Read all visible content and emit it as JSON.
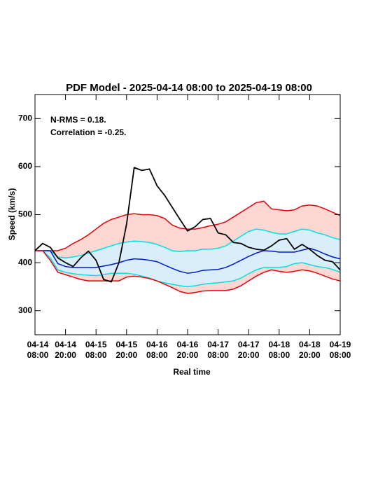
{
  "chart_data": {
    "type": "line",
    "title": "PDF Model - 2025-04-14 08:00 to 2025-04-19 08:00",
    "annotations": [
      "N-RMS = 0.18.",
      "Correlation = -0.25."
    ],
    "xlabel": "Real time",
    "ylabel": "Speed (km/s)",
    "xlim": [
      "2025-04-14T08:00",
      "2025-04-19T08:00"
    ],
    "xticks": [
      {
        "value": "2025-04-14T08:00",
        "label": "04-14\n08:00"
      },
      {
        "value": "2025-04-14T20:00",
        "label": "04-14\n20:00"
      },
      {
        "value": "2025-04-15T08:00",
        "label": "04-15\n08:00"
      },
      {
        "value": "2025-04-15T20:00",
        "label": "04-15\n20:00"
      },
      {
        "value": "2025-04-16T08:00",
        "label": "04-16\n08:00"
      },
      {
        "value": "2025-04-16T20:00",
        "label": "04-16\n20:00"
      },
      {
        "value": "2025-04-17T08:00",
        "label": "04-17\n08:00"
      },
      {
        "value": "2025-04-17T20:00",
        "label": "04-17\n20:00"
      },
      {
        "value": "2025-04-18T08:00",
        "label": "04-18\n08:00"
      },
      {
        "value": "2025-04-18T20:00",
        "label": "04-18\n20:00"
      },
      {
        "value": "2025-04-19T08:00",
        "label": "04-19\n08:00"
      }
    ],
    "ylim": [
      250,
      750
    ],
    "yticks": [
      300,
      400,
      500,
      600,
      700
    ],
    "x": [
      "2025-04-14T08:00",
      "2025-04-14T11:00",
      "2025-04-14T14:00",
      "2025-04-14T17:00",
      "2025-04-14T20:00",
      "2025-04-14T23:00",
      "2025-04-15T02:00",
      "2025-04-15T05:00",
      "2025-04-15T08:00",
      "2025-04-15T11:00",
      "2025-04-15T14:00",
      "2025-04-15T17:00",
      "2025-04-15T20:00",
      "2025-04-15T23:00",
      "2025-04-16T02:00",
      "2025-04-16T05:00",
      "2025-04-16T08:00",
      "2025-04-16T11:00",
      "2025-04-16T14:00",
      "2025-04-16T17:00",
      "2025-04-16T20:00",
      "2025-04-16T23:00",
      "2025-04-17T02:00",
      "2025-04-17T05:00",
      "2025-04-17T08:00",
      "2025-04-17T11:00",
      "2025-04-17T14:00",
      "2025-04-17T17:00",
      "2025-04-17T20:00",
      "2025-04-17T23:00",
      "2025-04-18T02:00",
      "2025-04-18T05:00",
      "2025-04-18T08:00",
      "2025-04-18T11:00",
      "2025-04-18T14:00",
      "2025-04-18T17:00",
      "2025-04-18T20:00",
      "2025-04-18T23:00",
      "2025-04-19T02:00",
      "2025-04-19T05:00",
      "2025-04-19T08:00"
    ],
    "bands": [
      {
        "between": [
          0,
          4
        ],
        "color": "#fdd8d3"
      },
      {
        "between": [
          1,
          3
        ],
        "color": "#d9eefa"
      }
    ],
    "series": [
      {
        "color": "#e8000b",
        "values": [
          425,
          425,
          425,
          425,
          430,
          440,
          448,
          458,
          470,
          482,
          490,
          495,
          500,
          502,
          500,
          500,
          498,
          492,
          478,
          472,
          470,
          470,
          473,
          477,
          480,
          485,
          495,
          505,
          515,
          525,
          528,
          512,
          510,
          508,
          510,
          518,
          520,
          518,
          512,
          505,
          498
        ]
      },
      {
        "color": "#00e0e0",
        "values": [
          425,
          425,
          425,
          412,
          410,
          412,
          415,
          420,
          425,
          430,
          435,
          440,
          443,
          445,
          444,
          442,
          438,
          432,
          425,
          423,
          425,
          425,
          428,
          428,
          430,
          435,
          445,
          455,
          465,
          470,
          468,
          463,
          460,
          460,
          465,
          470,
          468,
          462,
          458,
          452,
          448
        ]
      },
      {
        "color": "#0018d0",
        "values": [
          425,
          425,
          425,
          398,
          392,
          390,
          390,
          390,
          390,
          393,
          396,
          400,
          405,
          408,
          407,
          405,
          402,
          395,
          388,
          382,
          378,
          380,
          384,
          385,
          386,
          390,
          397,
          405,
          413,
          420,
          425,
          424,
          422,
          422,
          422,
          426,
          430,
          425,
          418,
          412,
          408
        ]
      },
      {
        "color": "#00e0e0",
        "values": [
          425,
          425,
          410,
          385,
          380,
          377,
          375,
          374,
          373,
          375,
          378,
          378,
          378,
          376,
          372,
          368,
          362,
          358,
          355,
          352,
          350,
          352,
          355,
          357,
          358,
          360,
          362,
          368,
          377,
          385,
          390,
          390,
          390,
          392,
          398,
          400,
          396,
          392,
          390,
          386,
          380
        ]
      },
      {
        "color": "#e8000b",
        "values": [
          425,
          425,
          405,
          380,
          375,
          370,
          365,
          362,
          362,
          362,
          362,
          362,
          370,
          372,
          370,
          367,
          362,
          355,
          348,
          340,
          336,
          338,
          341,
          342,
          342,
          342,
          345,
          352,
          362,
          372,
          380,
          385,
          382,
          380,
          382,
          385,
          383,
          378,
          372,
          366,
          362
        ]
      },
      {
        "color": "#000000",
        "values": [
          425,
          440,
          432,
          410,
          400,
          392,
          410,
          424,
          405,
          365,
          360,
          400,
          480,
          598,
          592,
          595,
          560,
          540,
          515,
          490,
          466,
          475,
          490,
          492,
          462,
          458,
          442,
          440,
          432,
          428,
          426,
          435,
          447,
          450,
          428,
          438,
          428,
          415,
          405,
          402,
          385
        ]
      }
    ]
  }
}
